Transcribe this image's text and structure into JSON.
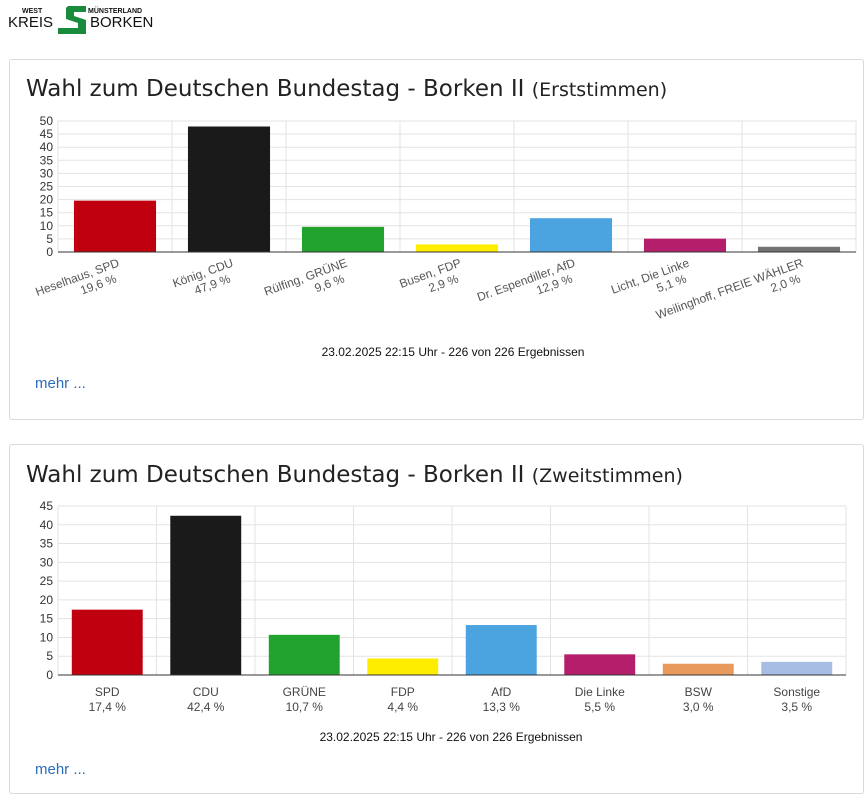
{
  "logo": {
    "line1": "WEST",
    "line1b": "MÜNSTERLAND",
    "left_word": "KREIS",
    "right_word": "BORKEN",
    "mark_color": "#1a8a3c"
  },
  "panels": [
    {
      "title_main": "Wahl zum Deutschen Bundestag - Borken II",
      "title_sub": "(Erststimmen)",
      "footer": "23.02.2025 22:15 Uhr - 226 von 226 Ergebnissen",
      "more_link": "mehr ...",
      "chart_data": {
        "type": "bar",
        "categories": [
          "Heselhaus, SPD",
          "König, CDU",
          "Rülfing, GRÜNE",
          "Busen, FDP",
          "Dr. Espendiller, AfD",
          "Licht, Die Linke",
          "Weilinghoff, FREIE WÄHLER"
        ],
        "values": [
          19.6,
          47.9,
          9.6,
          2.9,
          12.9,
          5.1,
          2.0
        ],
        "value_labels": [
          "19,6 %",
          "47,9 %",
          "9,6 %",
          "2,9 %",
          "12,9 %",
          "5,1 %",
          "2,0 %"
        ],
        "colors": [
          "#c0000e",
          "#1a1a1a",
          "#22a22f",
          "#ffed00",
          "#4ba3e0",
          "#b51e6a",
          "#737373"
        ],
        "ylim": [
          0,
          50
        ],
        "yticks": [
          0,
          5,
          10,
          15,
          20,
          25,
          30,
          35,
          40,
          45,
          50
        ],
        "label_rotation": "rotated",
        "grid": true
      }
    },
    {
      "title_main": "Wahl zum Deutschen Bundestag - Borken II",
      "title_sub": "(Zweitstimmen)",
      "footer": "23.02.2025 22:15 Uhr - 226 von 226 Ergebnissen",
      "more_link": "mehr ...",
      "chart_data": {
        "type": "bar",
        "categories": [
          "SPD",
          "CDU",
          "GRÜNE",
          "FDP",
          "AfD",
          "Die Linke",
          "BSW",
          "Sonstige"
        ],
        "values": [
          17.4,
          42.4,
          10.7,
          4.4,
          13.3,
          5.5,
          3.0,
          3.5
        ],
        "value_labels": [
          "17,4 %",
          "42,4 %",
          "10,7 %",
          "4,4 %",
          "13,3 %",
          "5,5 %",
          "3,0 %",
          "3,5 %"
        ],
        "colors": [
          "#c0000e",
          "#1a1a1a",
          "#22a22f",
          "#ffed00",
          "#4ba3e0",
          "#b51e6a",
          "#e89a5c",
          "#a7bde3"
        ],
        "ylim": [
          0,
          45
        ],
        "yticks": [
          0,
          5,
          10,
          15,
          20,
          25,
          30,
          35,
          40,
          45
        ],
        "label_rotation": "horizontal",
        "grid": true
      }
    }
  ]
}
